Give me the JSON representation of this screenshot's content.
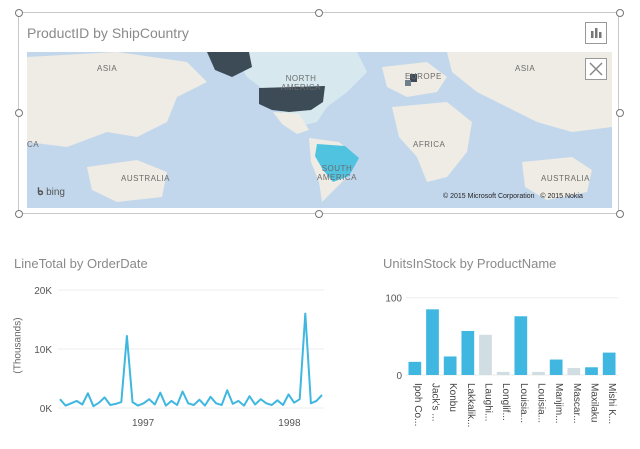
{
  "map_tile": {
    "title": "ProductID by ShipCountry",
    "labels": {
      "asia_left": "ASIA",
      "north_america": "NORTH\nAMERICA",
      "europe": "EUROPE",
      "asia_right": "ASIA",
      "africa": "AFRICA",
      "australia_left": "AUSTRALIA",
      "south_america": "SOUTH\nAMERICA",
      "australia_right": "AUSTRALIA",
      "ca": "CA"
    },
    "provider": "bing",
    "copyright": "© 2015 Microsoft Corporation   © 2015 Nokia",
    "buttons": {
      "chart_icon": "bar-chart-icon",
      "close_icon": "close-icon"
    },
    "colors": {
      "ocean": "#c3d7ec",
      "land": "#eeece4",
      "dark_country": "#3d4b57",
      "teal_country": "#4fc3e0",
      "light_country": "#d7e9ef"
    }
  },
  "line_chart": {
    "title": "LineTotal by OrderDate",
    "ylabel": "(Thousands)",
    "y_ticks": [
      "20K",
      "10K",
      "0K"
    ],
    "x_ticks": [
      "1997",
      "1998"
    ],
    "color": "#3fb7e0"
  },
  "bar_chart": {
    "title": "UnitsInStock by ProductName",
    "y_ticks": [
      "100",
      "0"
    ],
    "color": "#3fb7e0",
    "dim_color": "#d0dde3"
  },
  "chart_data": [
    {
      "type": "line",
      "title": "LineTotal by OrderDate",
      "ylabel": "(Thousands)",
      "ylim": [
        0,
        20
      ],
      "x_ticks": [
        "1997",
        "1998"
      ],
      "series": [
        {
          "values": [
            1.5,
            0.4,
            0.8,
            1.2,
            0.6,
            2.5,
            0.3,
            0.9,
            1.8,
            0.5,
            0.7,
            1.0,
            12.2,
            1.0,
            0.4,
            0.8,
            1.5,
            0.6,
            2.6,
            0.4,
            1.2,
            0.5,
            2.8,
            0.8,
            0.5,
            1.4,
            0.4,
            1.9,
            0.8,
            0.5,
            3.0,
            0.7,
            1.2,
            0.4,
            2.0,
            0.6,
            1.5,
            0.8,
            0.5,
            1.3,
            0.5,
            2.3,
            0.9,
            1.5,
            16.0,
            0.8,
            1.2,
            2.2
          ]
        }
      ]
    },
    {
      "type": "bar",
      "title": "UnitsInStock by ProductName",
      "ylim": [
        0,
        110
      ],
      "categories": [
        "Ipoh Co...",
        "Jack's ...",
        "Konbu",
        "Lakkalik...",
        "Laughi...",
        "Longlif...",
        "Louisia...",
        "Louisia...",
        "Manjim...",
        "Mascar...",
        "Maxilaku",
        "Mishi K..."
      ],
      "values": [
        17,
        85,
        24,
        57,
        52,
        4,
        76,
        4,
        20,
        9,
        10,
        29
      ],
      "dimmed": [
        false,
        false,
        false,
        false,
        true,
        true,
        false,
        true,
        false,
        true,
        false,
        false
      ]
    }
  ]
}
